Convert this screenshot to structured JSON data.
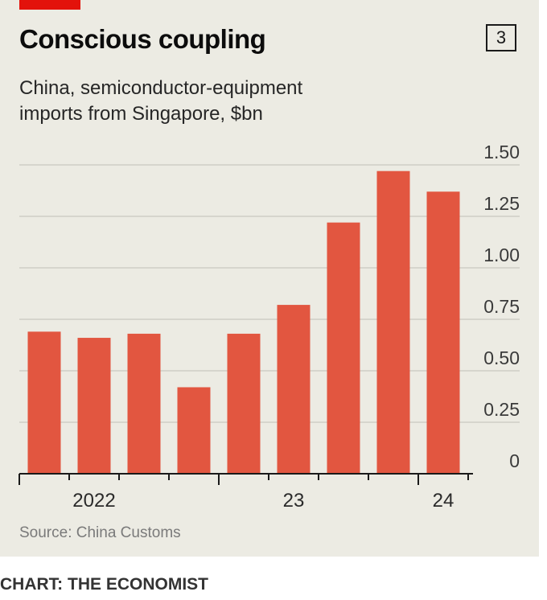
{
  "title": "Conscious coupling",
  "chart_number": "3",
  "subtitle_line1": "China, semiconductor-equipment",
  "subtitle_line2": "imports from Singapore, $bn",
  "source": "Source: China Customs",
  "credit": "CHART: THE ECONOMIST",
  "colors": {
    "bar": "#e25640",
    "accent": "#e3120b",
    "panel": "#ecebe3"
  },
  "chart_data": {
    "type": "bar",
    "title": "Conscious coupling",
    "subtitle": "China, semiconductor-equipment imports from Singapore, $bn",
    "quarters": [
      "2022 Q1",
      "2022 Q2",
      "2022 Q3",
      "2022 Q4",
      "2023 Q1",
      "2023 Q2",
      "2023 Q3",
      "2023 Q4",
      "2024 Q1"
    ],
    "values": [
      0.69,
      0.66,
      0.68,
      0.42,
      0.68,
      0.82,
      1.22,
      1.47,
      1.37
    ],
    "ylim": [
      0,
      1.5
    ],
    "yticks": [
      0,
      0.25,
      0.5,
      0.75,
      1.0,
      1.25,
      1.5
    ],
    "ytick_labels": [
      "0",
      "0.25",
      "0.50",
      "0.75",
      "1.00",
      "1.25",
      "1.50"
    ],
    "x_labels": [
      {
        "text": "2022",
        "quarter_index": 1.5
      },
      {
        "text": "23",
        "quarter_index": 5.5
      },
      {
        "text": "24",
        "quarter_index": 8.5
      }
    ],
    "grid": true,
    "y_axis_position": "right"
  }
}
